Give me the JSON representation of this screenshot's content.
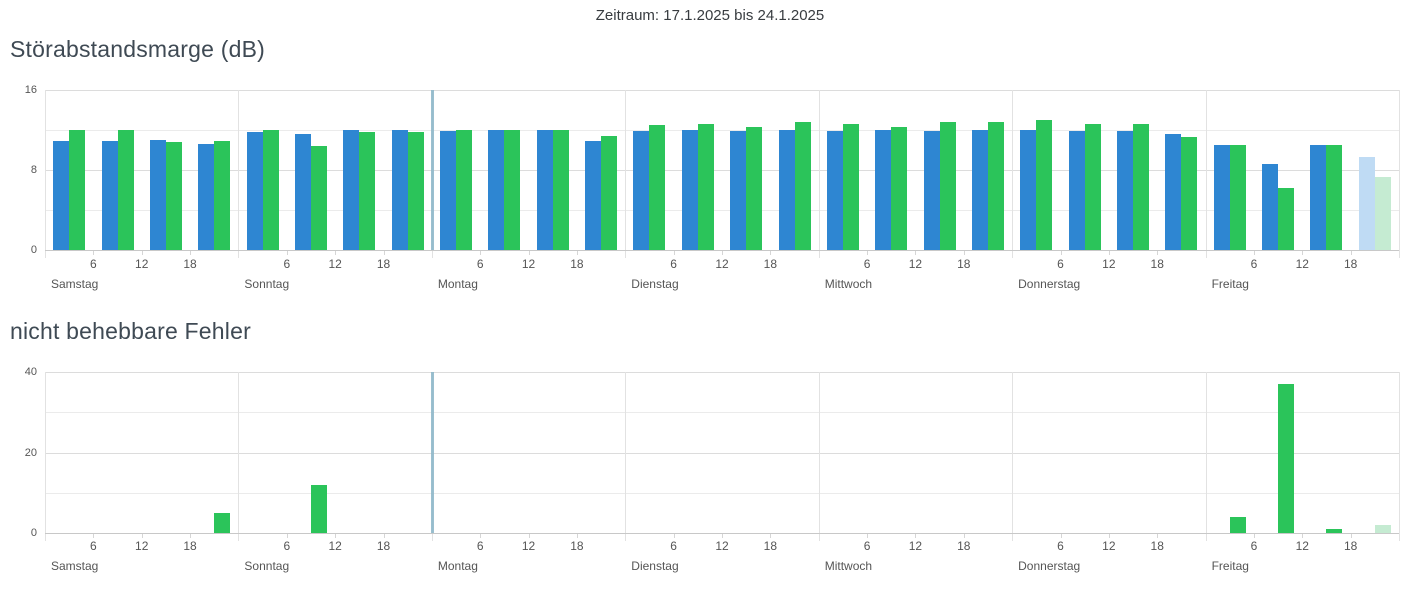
{
  "page": {
    "period_label": "Zeitraum: 17.1.2025 bis 24.1.2025"
  },
  "colors": {
    "bar_blue": "#2E86D2",
    "bar_green": "#2BC45A",
    "bar_blue_faded": "#BFDBF4",
    "bar_green_faded": "#C5EBD2",
    "marker_line": "#8AB5C8"
  },
  "marker": {
    "day_boundary_index": 2
  },
  "chart_data": [
    {
      "type": "bar",
      "title": "Störabstandsmarge (dB)",
      "ylim": [
        0,
        16
      ],
      "y_major_ticks": [
        0,
        8,
        16
      ],
      "y_minor_gridlines": [
        4,
        12
      ],
      "hour_ticks": [
        6,
        12,
        18
      ],
      "slot_hours": [
        3,
        9,
        15,
        21
      ],
      "categories": [
        "Samstag",
        "Sonntag",
        "Montag",
        "Dienstag",
        "Mittwoch",
        "Donnerstag",
        "Freitag"
      ],
      "series": [
        {
          "name": "blue",
          "values": [
            [
              10.9,
              10.9,
              11.0,
              10.6
            ],
            [
              11.8,
              11.6,
              12.0,
              12.0
            ],
            [
              11.9,
              12.0,
              12.0,
              10.9
            ],
            [
              11.9,
              12.0,
              11.9,
              12.0
            ],
            [
              11.9,
              12.0,
              11.9,
              12.0
            ],
            [
              12.0,
              11.9,
              11.9,
              11.6
            ],
            [
              10.5,
              8.6,
              10.5,
              9.3
            ]
          ]
        },
        {
          "name": "green",
          "values": [
            [
              12.0,
              12.0,
              10.8,
              10.9
            ],
            [
              12.0,
              10.4,
              11.8,
              11.8
            ],
            [
              12.0,
              12.0,
              12.0,
              11.4
            ],
            [
              12.5,
              12.6,
              12.3,
              12.8
            ],
            [
              12.6,
              12.3,
              12.8,
              12.8
            ],
            [
              13.0,
              12.6,
              12.6,
              11.3
            ],
            [
              10.5,
              6.2,
              10.5,
              7.3
            ]
          ]
        }
      ],
      "faded_slots": [
        {
          "day_index": 6,
          "slot_index": 3
        }
      ]
    },
    {
      "type": "bar",
      "title": "nicht behebbare Fehler",
      "ylim": [
        0,
        40
      ],
      "y_major_ticks": [
        0,
        20,
        40
      ],
      "y_minor_gridlines": [
        10,
        30
      ],
      "hour_ticks": [
        6,
        12,
        18
      ],
      "slot_hours": [
        3,
        9,
        15,
        21
      ],
      "categories": [
        "Samstag",
        "Sonntag",
        "Montag",
        "Dienstag",
        "Mittwoch",
        "Donnerstag",
        "Freitag"
      ],
      "series": [
        {
          "name": "blue",
          "values": [
            [
              0,
              0,
              0,
              0
            ],
            [
              0,
              0,
              0,
              0
            ],
            [
              0,
              0,
              0,
              0
            ],
            [
              0,
              0,
              0,
              0
            ],
            [
              0,
              0,
              0,
              0
            ],
            [
              0,
              0,
              0,
              0
            ],
            [
              0,
              0,
              0,
              0
            ]
          ]
        },
        {
          "name": "green",
          "values": [
            [
              0,
              0,
              0,
              5
            ],
            [
              0,
              12,
              0,
              0
            ],
            [
              0,
              0,
              0,
              0
            ],
            [
              0,
              0,
              0,
              0
            ],
            [
              0,
              0,
              0,
              0
            ],
            [
              0,
              0,
              0,
              0
            ],
            [
              4,
              37,
              1,
              2
            ]
          ]
        }
      ],
      "faded_slots": [
        {
          "day_index": 6,
          "slot_index": 3
        }
      ]
    }
  ]
}
